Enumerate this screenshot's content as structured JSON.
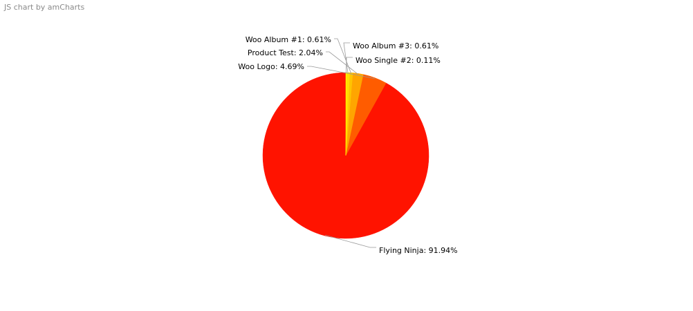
{
  "credit": "JS chart by amCharts",
  "chart_data": {
    "type": "pie",
    "start_angle_deg": 90,
    "direction": "counterclockwise",
    "legend": "none",
    "slices": [
      {
        "label": "Flying Ninja",
        "value": 91.94,
        "color": "#ff1300",
        "pct_text": "91.94%"
      },
      {
        "label": "Woo Logo",
        "value": 4.69,
        "color": "#ff5c00",
        "pct_text": "4.69%"
      },
      {
        "label": "Product Test",
        "value": 2.04,
        "color": "#ffa500",
        "pct_text": "2.04%"
      },
      {
        "label": "Woo Album #1",
        "value": 0.61,
        "color": "#ffc400",
        "pct_text": "0.61%"
      },
      {
        "label": "Woo Album #3",
        "value": 0.61,
        "color": "#ffde00",
        "pct_text": "0.61%"
      },
      {
        "label": "Woo Single #2",
        "value": 0.11,
        "color": "#fff700",
        "pct_text": "0.11%"
      }
    ]
  }
}
